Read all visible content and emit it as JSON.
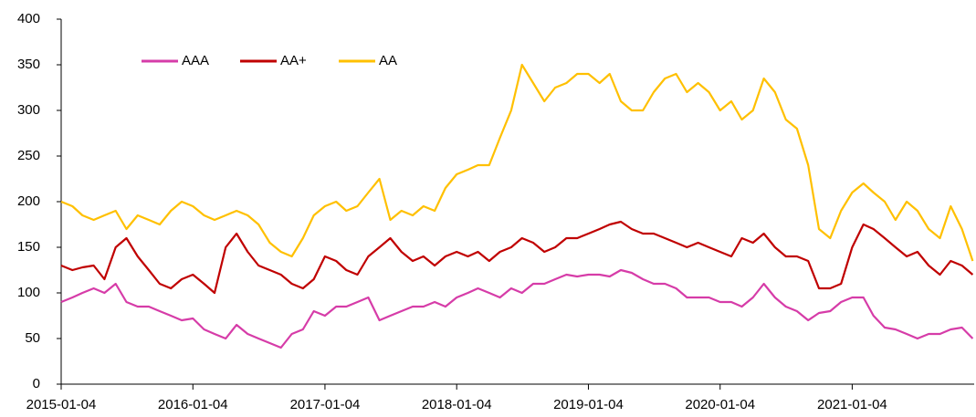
{
  "chart_data": {
    "type": "line",
    "x": [
      "2015-01-04",
      "2015-02-04",
      "2015-03-04",
      "2015-04-04",
      "2015-05-04",
      "2015-06-04",
      "2015-07-04",
      "2015-08-04",
      "2015-09-04",
      "2015-10-04",
      "2015-11-04",
      "2015-12-04",
      "2016-01-04",
      "2016-02-04",
      "2016-03-04",
      "2016-04-04",
      "2016-05-04",
      "2016-06-04",
      "2016-07-04",
      "2016-08-04",
      "2016-09-04",
      "2016-10-04",
      "2016-11-04",
      "2016-12-04",
      "2017-01-04",
      "2017-02-04",
      "2017-03-04",
      "2017-04-04",
      "2017-05-04",
      "2017-06-04",
      "2017-07-04",
      "2017-08-04",
      "2017-09-04",
      "2017-10-04",
      "2017-11-04",
      "2017-12-04",
      "2018-01-04",
      "2018-02-04",
      "2018-03-04",
      "2018-04-04",
      "2018-05-04",
      "2018-06-04",
      "2018-07-04",
      "2018-08-04",
      "2018-09-04",
      "2018-10-04",
      "2018-11-04",
      "2018-12-04",
      "2019-01-04",
      "2019-02-04",
      "2019-03-04",
      "2019-04-04",
      "2019-05-04",
      "2019-06-04",
      "2019-07-04",
      "2019-08-04",
      "2019-09-04",
      "2019-10-04",
      "2019-11-04",
      "2019-12-04",
      "2020-01-04",
      "2020-02-04",
      "2020-03-04",
      "2020-04-04",
      "2020-05-04",
      "2020-06-04",
      "2020-07-04",
      "2020-08-04",
      "2020-09-04",
      "2020-10-04",
      "2020-11-04",
      "2020-12-04",
      "2021-01-04",
      "2021-02-04",
      "2021-03-04",
      "2021-04-04",
      "2021-05-04",
      "2021-06-04",
      "2021-07-04",
      "2021-08-04",
      "2021-09-04",
      "2021-10-04",
      "2021-11-04",
      "2021-12-04"
    ],
    "series": [
      {
        "name": "AAA",
        "color": "#d63ca8",
        "values": [
          90,
          95,
          100,
          105,
          100,
          110,
          90,
          85,
          85,
          80,
          75,
          70,
          72,
          60,
          55,
          50,
          65,
          55,
          50,
          45,
          40,
          55,
          60,
          80,
          75,
          85,
          85,
          90,
          95,
          70,
          75,
          80,
          85,
          85,
          90,
          85,
          95,
          100,
          105,
          100,
          95,
          105,
          100,
          110,
          110,
          115,
          120,
          118,
          120,
          120,
          118,
          125,
          122,
          115,
          110,
          110,
          105,
          95,
          95,
          95,
          90,
          90,
          85,
          95,
          110,
          95,
          85,
          80,
          70,
          78,
          80,
          90,
          95,
          95,
          75,
          62,
          60,
          55,
          50,
          55,
          55,
          60,
          62,
          50
        ]
      },
      {
        "name": "AA+",
        "color": "#c00000",
        "values": [
          130,
          125,
          128,
          130,
          115,
          150,
          160,
          140,
          125,
          110,
          105,
          115,
          120,
          110,
          100,
          150,
          165,
          145,
          130,
          125,
          120,
          110,
          105,
          115,
          140,
          135,
          125,
          120,
          140,
          150,
          160,
          145,
          135,
          140,
          130,
          140,
          145,
          140,
          145,
          135,
          145,
          150,
          160,
          155,
          145,
          150,
          160,
          160,
          165,
          170,
          175,
          178,
          170,
          165,
          165,
          160,
          155,
          150,
          155,
          150,
          145,
          140,
          160,
          155,
          165,
          150,
          140,
          140,
          135,
          105,
          105,
          110,
          150,
          175,
          170,
          160,
          150,
          140,
          145,
          130,
          120,
          135,
          130,
          120
        ]
      },
      {
        "name": "AA",
        "color": "#ffc000",
        "values": [
          200,
          195,
          185,
          180,
          185,
          190,
          170,
          185,
          180,
          175,
          190,
          200,
          195,
          185,
          180,
          185,
          190,
          185,
          175,
          155,
          145,
          140,
          160,
          185,
          195,
          200,
          190,
          195,
          210,
          225,
          180,
          190,
          185,
          195,
          190,
          215,
          230,
          235,
          240,
          240,
          270,
          300,
          350,
          330,
          310,
          325,
          330,
          340,
          340,
          330,
          340,
          310,
          300,
          300,
          320,
          335,
          340,
          320,
          330,
          320,
          300,
          310,
          290,
          300,
          335,
          320,
          290,
          280,
          240,
          170,
          160,
          190,
          210,
          220,
          210,
          200,
          180,
          200,
          190,
          170,
          160,
          195,
          170,
          135
        ]
      }
    ],
    "xlim": [
      "2015-01-04",
      "2021-12-08"
    ],
    "xticks": [
      "2015-01-04",
      "2016-01-04",
      "2017-01-04",
      "2018-01-04",
      "2019-01-04",
      "2020-01-04",
      "2021-01-04"
    ],
    "ylim": [
      0,
      400
    ],
    "yticks": [
      0,
      50,
      100,
      150,
      200,
      250,
      300,
      350,
      400
    ],
    "grid": false,
    "legend": "upper left"
  }
}
